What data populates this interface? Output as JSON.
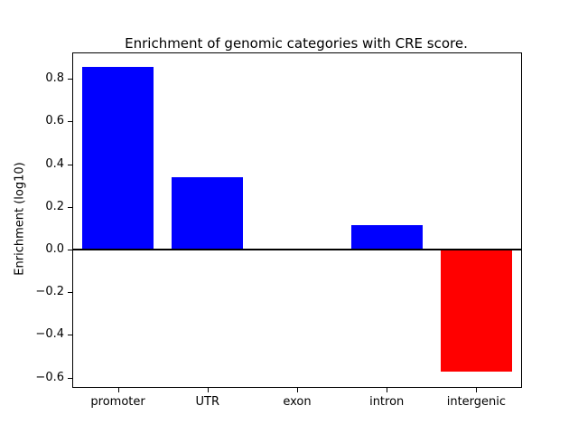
{
  "chart_data": {
    "type": "bar",
    "title": "Enrichment of genomic categories with CRE score.",
    "ylabel": "Enrichment (log10)",
    "xlabel": "",
    "categories": [
      "promoter",
      "UTR",
      "exon",
      "intron",
      "intergenic"
    ],
    "values": [
      0.855,
      0.34,
      0.0,
      0.115,
      -0.57
    ],
    "bar_colors": [
      "#0000ff",
      "#0000ff",
      "#0000ff",
      "#0000ff",
      "#ff0000"
    ],
    "positive_color": "#0000ff",
    "negative_color": "#ff0000",
    "ylim": [
      -0.644,
      0.919
    ],
    "yticks": [
      -0.6,
      -0.4,
      -0.2,
      0.0,
      0.2,
      0.4,
      0.6,
      0.8
    ],
    "ytick_labels": [
      "−0.6",
      "−0.4",
      "−0.2",
      "0.0",
      "0.2",
      "0.4",
      "0.6",
      "0.8"
    ],
    "grid": false,
    "legend": false,
    "zero_line": true,
    "background_color": "#ffffff"
  }
}
